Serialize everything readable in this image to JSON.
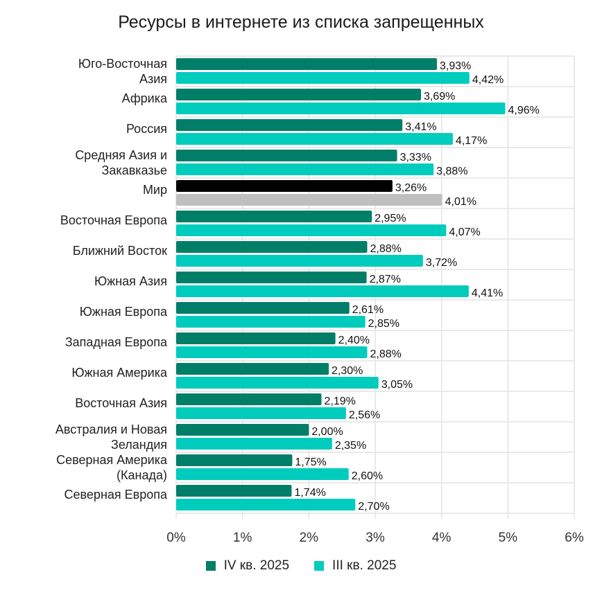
{
  "chart_data": {
    "type": "bar",
    "orientation": "horizontal",
    "title": "Ресурсы в интернете из списка запрещенных",
    "categories": [
      [
        "Юго-Восточная",
        "Азия"
      ],
      [
        "Африка"
      ],
      [
        "Россия"
      ],
      [
        "Средняя Азия и",
        "Закавказье"
      ],
      [
        "Мир"
      ],
      [
        "Восточная Европа"
      ],
      [
        "Ближний Восток"
      ],
      [
        "Южная Азия"
      ],
      [
        "Южная Европа"
      ],
      [
        "Западная Европа"
      ],
      [
        "Южная Америка"
      ],
      [
        "Восточная Азия"
      ],
      [
        "Австралия и Новая",
        "Зеландия"
      ],
      [
        "Северная Америка",
        "(Канада)"
      ],
      [
        "Северная Европа"
      ]
    ],
    "series": [
      {
        "name": "IV кв. 2025",
        "color": "#007E68",
        "values": [
          3.93,
          3.69,
          3.41,
          3.33,
          3.26,
          2.95,
          2.88,
          2.87,
          2.61,
          2.4,
          2.3,
          2.19,
          2.0,
          1.75,
          1.74
        ],
        "labels": [
          "3,93%",
          "3,69%",
          "3,41%",
          "3,33%",
          "3,26%",
          "2,95%",
          "2,88%",
          "2,87%",
          "2,61%",
          "2,40%",
          "2,30%",
          "2,19%",
          "2,00%",
          "1,75%",
          "1,74%"
        ]
      },
      {
        "name": "III кв. 2025",
        "color": "#00CCBD",
        "values": [
          4.42,
          4.96,
          4.17,
          3.88,
          4.01,
          4.07,
          3.72,
          4.41,
          2.85,
          2.88,
          3.05,
          2.56,
          2.35,
          2.6,
          2.7
        ],
        "labels": [
          "4,42%",
          "4,96%",
          "4,17%",
          "3,88%",
          "4,01%",
          "4,07%",
          "3,72%",
          "4,41%",
          "2,85%",
          "2,88%",
          "3,05%",
          "2,56%",
          "2,35%",
          "2,60%",
          "2,70%"
        ]
      }
    ],
    "highlight": {
      "category_index": 4,
      "colors": [
        "#000000",
        "#BFBFBF"
      ]
    },
    "xlim": [
      0,
      6
    ],
    "xticks": [
      "0%",
      "1%",
      "2%",
      "3%",
      "4%",
      "5%",
      "6%"
    ],
    "grid": true,
    "legend_position": "bottom"
  }
}
